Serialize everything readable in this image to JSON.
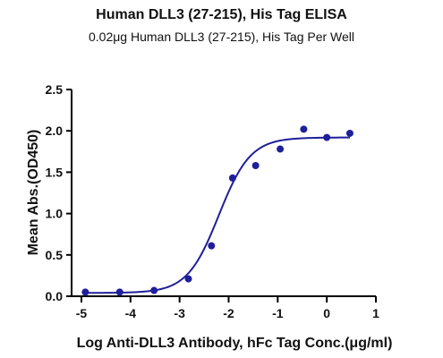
{
  "chart_data": {
    "type": "scatter",
    "title": "Human DLL3 (27-215), His Tag ELISA",
    "subtitle": "0.02μg Human DLL3 (27-215), His Tag Per Well",
    "xlabel": "Log Anti-DLL3 Antibody, hFc Tag Conc.(μg/ml)",
    "ylabel": "Mean Abs.(OD450)",
    "xlim": [
      -5.2,
      1
    ],
    "ylim": [
      0,
      2.5
    ],
    "xticks": [
      -5,
      -4,
      -3,
      -2,
      -1,
      0,
      1
    ],
    "yticks": [
      0.0,
      0.5,
      1.0,
      1.5,
      2.0,
      2.5
    ],
    "xtick_labels": [
      "-5",
      "-4",
      "-3",
      "-2",
      "-1",
      "0",
      "1"
    ],
    "ytick_labels": [
      "0.0",
      "0.5",
      "1.0",
      "1.5",
      "2.0",
      "2.5"
    ],
    "grid": false,
    "points": [
      {
        "x": -4.92,
        "y": 0.05
      },
      {
        "x": -4.22,
        "y": 0.05
      },
      {
        "x": -3.52,
        "y": 0.07
      },
      {
        "x": -2.82,
        "y": 0.21
      },
      {
        "x": -2.35,
        "y": 0.61
      },
      {
        "x": -1.92,
        "y": 1.43
      },
      {
        "x": -1.45,
        "y": 1.58
      },
      {
        "x": -0.95,
        "y": 1.78
      },
      {
        "x": -0.47,
        "y": 2.02
      },
      {
        "x": 0.0,
        "y": 1.92
      },
      {
        "x": 0.47,
        "y": 1.97
      }
    ],
    "fit": {
      "model": "4PL",
      "bottom": 0.04,
      "top": 1.92,
      "logEC50": -2.2,
      "hill": 1.35,
      "x_range": [
        -4.92,
        0.47
      ]
    },
    "colors": {
      "series": "#1f1f9a",
      "axis": "#000000"
    }
  }
}
